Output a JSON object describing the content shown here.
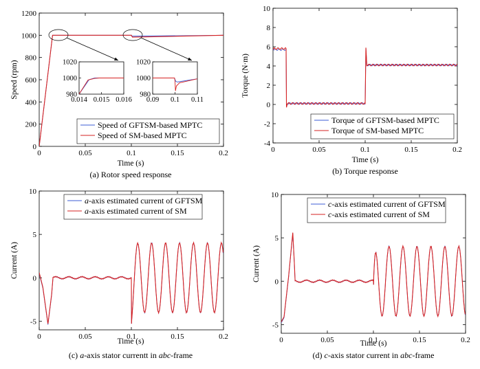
{
  "colors": {
    "gftsm": "#3b5bd6",
    "sm": "#d62020",
    "frame": "#000000"
  },
  "chart_data": [
    {
      "id": "a",
      "type": "line",
      "caption": "(a) Rotor speed response",
      "xlabel": "Time (s)",
      "ylabel": "Speed (rpm)",
      "xlim": [
        0,
        0.2
      ],
      "ylim": [
        0,
        1200
      ],
      "xticks": [
        "0",
        "0.05",
        "0.1",
        "0.15",
        "0.2"
      ],
      "yticks": [
        "0",
        "200",
        "400",
        "600",
        "800",
        "1000",
        "1200"
      ],
      "legend_position": "bottom-right",
      "series": [
        {
          "name": "Speed of GFTSM-based MPTC",
          "color": "#3b5bd6",
          "x": [
            0,
            0.0145,
            0.016,
            0.1,
            0.0998,
            0.1004,
            0.2
          ],
          "y": [
            0,
            1000,
            1000,
            1000,
            999,
            992,
            1000
          ]
        },
        {
          "name": "Speed of SM-based MPTC",
          "color": "#d62020",
          "x": [
            0,
            0.0145,
            0.016,
            0.1,
            0.1,
            0.1012,
            0.2
          ],
          "y": [
            0,
            1000,
            1000,
            1000,
            999,
            983,
            1000
          ]
        }
      ],
      "insets": [
        {
          "xlim": [
            0.014,
            0.016
          ],
          "ylim": [
            980,
            1020
          ],
          "xticks": [
            "0.014",
            "0.015",
            "0.016"
          ],
          "yticks": [
            "980",
            "1000",
            "1020"
          ],
          "series": [
            {
              "color": "#3b5bd6",
              "x": [
                0.014,
                0.01445,
                0.0147,
                0.0149,
                0.016
              ],
              "y": [
                980,
                998,
                1000,
                1000,
                1000
              ]
            },
            {
              "color": "#d62020",
              "x": [
                0.014,
                0.0144,
                0.0147,
                0.0149,
                0.016
              ],
              "y": [
                980,
                997.5,
                999.5,
                1000,
                1000
              ]
            }
          ]
        },
        {
          "xlim": [
            0.09,
            0.11
          ],
          "ylim": [
            980,
            1020
          ],
          "xticks": [
            "0.09",
            "0.1",
            "0.11"
          ],
          "yticks": [
            "980",
            "1000",
            "1020"
          ],
          "series": [
            {
              "color": "#3b5bd6",
              "x": [
                0.09,
                0.0995,
                0.0998,
                0.1003,
                0.101,
                0.11
              ],
              "y": [
                1000,
                1000,
                999.5,
                996,
                995,
                999
              ]
            },
            {
              "color": "#d62020",
              "x": [
                0.09,
                0.0998,
                0.1,
                0.1002,
                0.1006,
                0.102,
                0.11
              ],
              "y": [
                1000,
                1000,
                996,
                984,
                990,
                994,
                999
              ]
            }
          ]
        }
      ]
    },
    {
      "id": "b",
      "type": "line",
      "caption": "(b) Torque response",
      "xlabel": "Time (s)",
      "ylabel": "Torque (N·m)",
      "xlim": [
        0,
        0.2
      ],
      "ylim": [
        -4,
        10
      ],
      "xticks": [
        "0",
        "0.05",
        "0.1",
        "0.15",
        "0.2"
      ],
      "yticks": [
        "-4",
        "-2",
        "0",
        "2",
        "4",
        "6",
        "8",
        "10"
      ],
      "legend_position": "bottom-right",
      "series": [
        {
          "name": "Torque of GFTSM-based MPTC",
          "color": "#3b5bd6",
          "x": [
            0,
            0.001,
            0.0142,
            0.0146,
            0.0155,
            0.1,
            0.1008,
            0.1018,
            0.2
          ],
          "y": [
            5.7,
            5.7,
            5.7,
            -0.2,
            0.1,
            0.1,
            5.8,
            4.1,
            4.1
          ]
        },
        {
          "name": "Torque of SM-based MPTC",
          "color": "#d62020",
          "x": [
            0,
            0.001,
            0.0142,
            0.0146,
            0.0155,
            0.1,
            0.1008,
            0.1018,
            0.2
          ],
          "y": [
            5.7,
            5.8,
            5.8,
            -0.3,
            0.1,
            0.1,
            5.9,
            4.1,
            4.1
          ]
        }
      ]
    },
    {
      "id": "c",
      "type": "line",
      "caption": "(c) a-axis stator currentt in abc-frame",
      "caption_parts": [
        "(c) ",
        "a",
        "-axis stator currentt in ",
        "abc",
        "-frame"
      ],
      "xlabel": "Time (s)",
      "ylabel": "Current (A)",
      "xlim": [
        0,
        0.2
      ],
      "ylim": [
        -6,
        10
      ],
      "xticks": [
        "0",
        "0.05",
        "0.1",
        "0.15",
        "0.2"
      ],
      "yticks": [
        "-5",
        "0",
        "5",
        "10"
      ],
      "legend_position": "top-center",
      "series": [
        {
          "name": "a-axis estimated current of GFTSM",
          "name_italic": "a",
          "name_rest": "-axis estimated current of GFTSM",
          "color": "#3b5bd6"
        },
        {
          "name": "a-axis estimated current of SM",
          "name_italic": "a",
          "name_rest": "-axis estimated current of SM",
          "color": "#d62020"
        }
      ],
      "waveform": {
        "startup": [
          [
            0,
            0.5
          ],
          [
            0.004,
            -1.2
          ],
          [
            0.0095,
            -5.4
          ],
          [
            0.0135,
            -2.0
          ],
          [
            0.015,
            0
          ]
        ],
        "ripple_until": 0.1,
        "step": [
          0.1,
          -5.3
        ],
        "amplitude": 4.0,
        "frequency_hz": 66,
        "phase_deg": 0
      }
    },
    {
      "id": "d",
      "type": "line",
      "caption": "(d) c-axis stator current in abc-frame",
      "caption_parts": [
        "(d) ",
        "c",
        "-axis stator current in ",
        "abc",
        "-frame"
      ],
      "xlabel": "Time (s)",
      "ylabel": "Current (A)",
      "xlim": [
        0,
        0.2
      ],
      "ylim": [
        -6,
        10
      ],
      "xticks": [
        "0",
        "0.05",
        "0.1",
        "0.15",
        "0.2"
      ],
      "yticks": [
        "-5",
        "0",
        "5",
        "10"
      ],
      "legend_position": "top-center",
      "series": [
        {
          "name": "c-axis estimated current of GFTSM",
          "name_italic": "c",
          "name_rest": "-axis estimated current of GFTSM",
          "color": "#3b5bd6"
        },
        {
          "name": "c-axis estimated current of SM",
          "name_italic": "c",
          "name_rest": "-axis estimated current of SM",
          "color": "#d62020"
        }
      ],
      "waveform": {
        "startup": [
          [
            0,
            -4.8
          ],
          [
            0.003,
            -4.2
          ],
          [
            0.008,
            0.5
          ],
          [
            0.0125,
            5.5
          ],
          [
            0.0142,
            2.0
          ],
          [
            0.015,
            0
          ]
        ],
        "ripple_until": 0.1,
        "step": [
          0.1,
          -0.4
        ],
        "amplitude": 4.0,
        "frequency_hz": 66,
        "phase_deg": 120
      }
    }
  ]
}
